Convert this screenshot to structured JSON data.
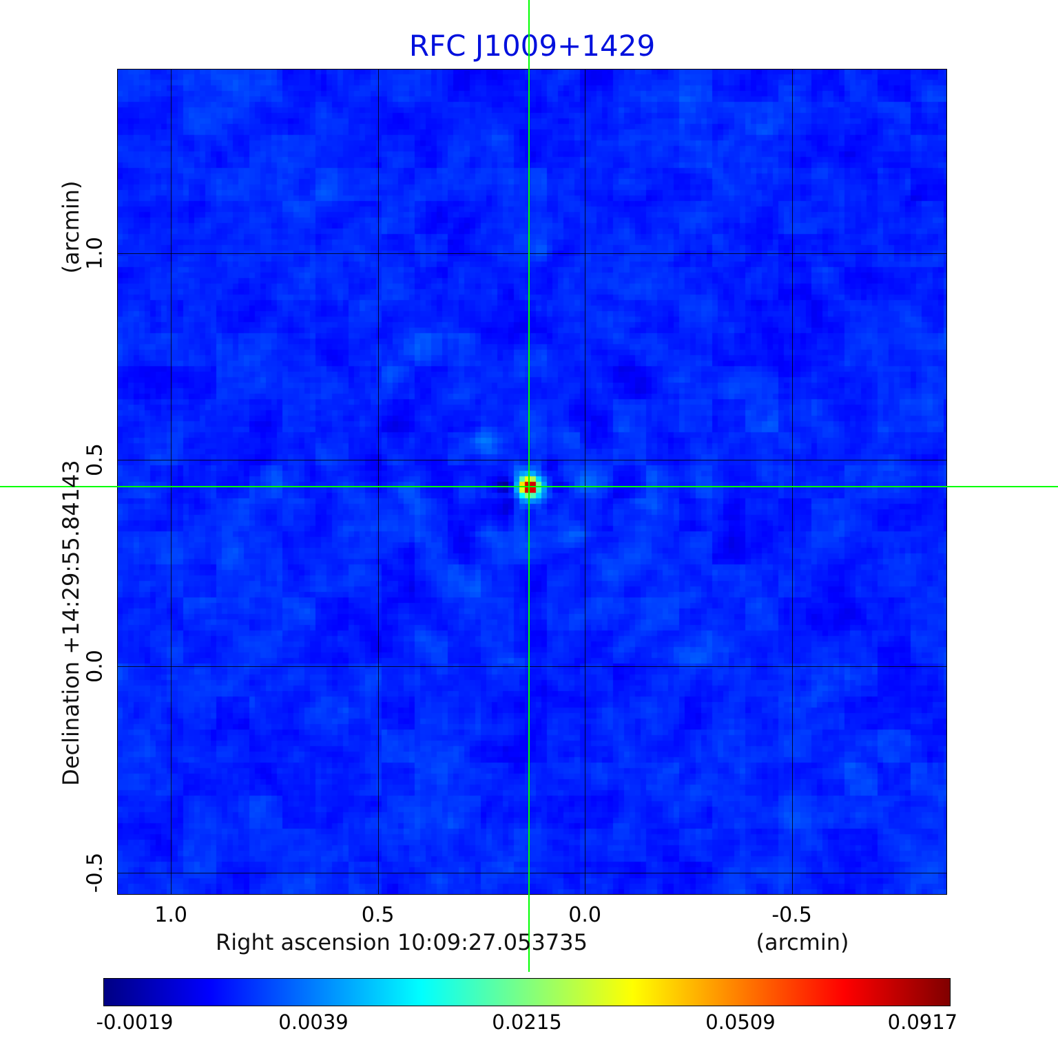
{
  "chart_data": {
    "type": "heatmap",
    "title": "RFC J1009+1429",
    "title_color": "#0010dd",
    "xlabel": "Right ascension  10:09:27.053735",
    "xunit": "(arcmin)",
    "ylabel": "Declination  +14:29:55.84143",
    "yunit": "(arcmin)",
    "x_ticks": [
      "1.0",
      "0.5",
      "0.0",
      "-0.5"
    ],
    "x_tick_values": [
      1.0,
      0.5,
      0.0,
      -0.5
    ],
    "y_ticks": [
      "1.0",
      "0.5",
      "0.0",
      "-0.5"
    ],
    "y_tick_values": [
      1.0,
      0.5,
      0.0,
      -0.5
    ],
    "x_range": [
      1.13,
      -0.875
    ],
    "y_range": [
      1.446,
      -0.554
    ],
    "grid": true,
    "colormap": "jet",
    "source": {
      "x_arcmin": 0.135,
      "y_arcmin": 0.435,
      "peak_value": 0.0917,
      "crosshair_color": "#00ff00"
    },
    "colorbar": {
      "tick_labels": [
        "-0.0019",
        "0.0039",
        "0.0215",
        "0.0509",
        "0.0917"
      ],
      "tick_positions": [
        0.037,
        0.248,
        0.5,
        0.752,
        0.967
      ]
    }
  }
}
